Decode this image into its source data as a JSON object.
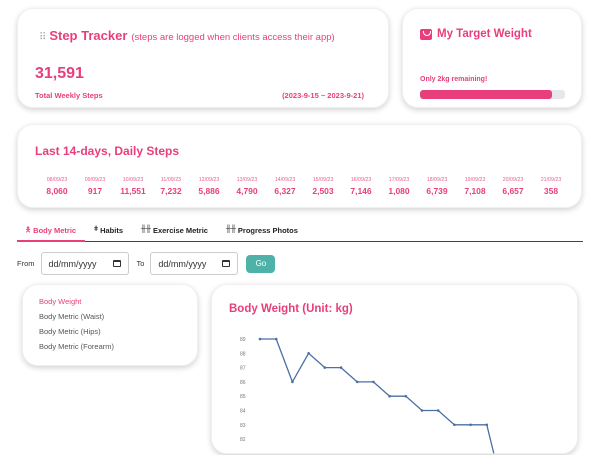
{
  "step_tracker": {
    "icon": "grip-icon",
    "title": "Step Tracker",
    "subtitle": "(steps are logged when clients access their app)",
    "total_steps": "31,591",
    "total_label": "Total Weekly Steps",
    "date_range": "(2023-9-15 ~ 2023-9-21)"
  },
  "target_weight": {
    "icon": "weight-scale-icon",
    "title": "My Target Weight",
    "remaining_text": "Only 2kg remaining!",
    "progress_percent": 91,
    "bar_color": "#e83e7c",
    "track_color": "#e4e7eb"
  },
  "daily_steps": {
    "title": "Last 14-days, Daily Steps",
    "days": [
      {
        "date": "08/09/23",
        "steps": "8,060"
      },
      {
        "date": "09/09/23",
        "steps": "917"
      },
      {
        "date": "10/09/23",
        "steps": "11,551"
      },
      {
        "date": "11/09/23",
        "steps": "7,232"
      },
      {
        "date": "12/09/23",
        "steps": "5,886"
      },
      {
        "date": "13/09/23",
        "steps": "4,790"
      },
      {
        "date": "14/09/23",
        "steps": "6,327"
      },
      {
        "date": "15/09/23",
        "steps": "2,503"
      },
      {
        "date": "16/09/23",
        "steps": "7,146"
      },
      {
        "date": "17/09/23",
        "steps": "1,080"
      },
      {
        "date": "18/09/23",
        "steps": "6,739"
      },
      {
        "date": "19/09/23",
        "steps": "7,108"
      },
      {
        "date": "20/09/23",
        "steps": "6,657"
      },
      {
        "date": "21/09/23",
        "steps": "358"
      }
    ]
  },
  "tabs": [
    {
      "label": "Body Metric",
      "icon": "body-icon",
      "active": true
    },
    {
      "label": "Habits",
      "icon": "habits-icon",
      "active": false
    },
    {
      "label": "Exercise Metric",
      "icon": "dumbbell-icon",
      "active": false
    },
    {
      "label": "Progress Photos",
      "icon": "dumbbell-icon",
      "active": false
    }
  ],
  "filter": {
    "from_label": "From",
    "from_placeholder": "dd/mm/yyyy",
    "to_label": "To",
    "to_placeholder": "dd/mm/yyyy",
    "go_label": "Go",
    "go_color": "#4fb2a9"
  },
  "metric_list": {
    "items": [
      {
        "label": "Body Weight",
        "active": true
      },
      {
        "label": "Body Metric (Waist)",
        "active": false
      },
      {
        "label": "Body Metric (Hips)",
        "active": false
      },
      {
        "label": "Body Metric (Forearm)",
        "active": false
      }
    ]
  },
  "chart": {
    "title": "Body Weight (Unit: kg)"
  },
  "chart_data": {
    "type": "line",
    "title": "Body Weight (Unit: kg)",
    "xlabel": "",
    "ylabel": "",
    "yticks": [
      89,
      88,
      87,
      86,
      85,
      84,
      83,
      82
    ],
    "ylim": [
      82,
      89
    ],
    "grid": false,
    "line_color": "#4a6fa5",
    "series": [
      {
        "name": "Body Weight",
        "values": [
          89,
          89,
          86,
          88,
          87,
          87,
          86,
          86,
          85,
          85,
          84,
          84,
          83,
          83,
          83,
          81
        ]
      }
    ]
  },
  "colors": {
    "accent": "#e83e7c",
    "go_button": "#4fb2a9",
    "chart_line": "#4a6fa5"
  }
}
